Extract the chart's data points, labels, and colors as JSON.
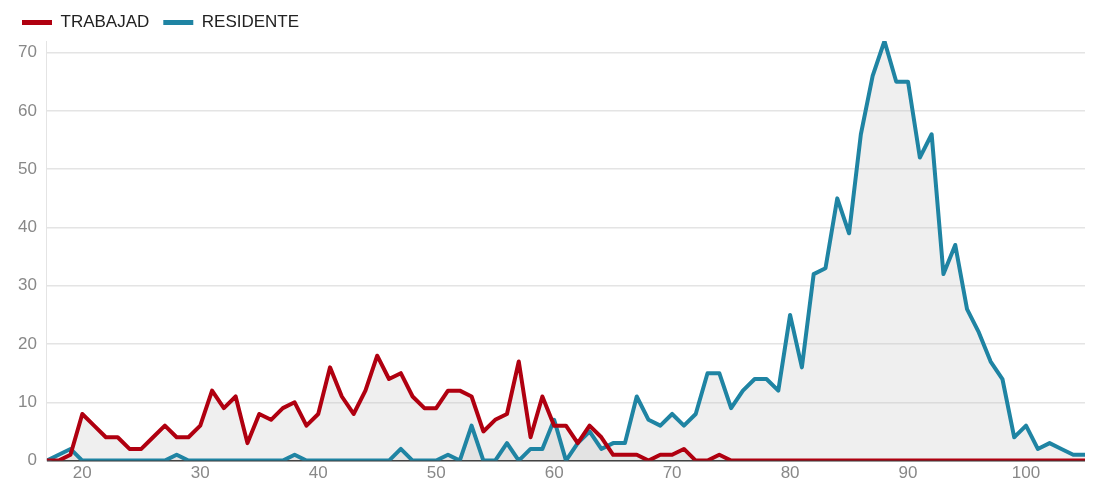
{
  "chart_data": {
    "type": "area",
    "x": [
      17,
      18,
      19,
      20,
      21,
      22,
      23,
      24,
      25,
      26,
      27,
      28,
      29,
      30,
      31,
      32,
      33,
      34,
      35,
      36,
      37,
      38,
      39,
      40,
      41,
      42,
      43,
      44,
      45,
      46,
      47,
      48,
      49,
      50,
      51,
      52,
      53,
      54,
      55,
      56,
      57,
      58,
      59,
      60,
      61,
      62,
      63,
      64,
      65,
      66,
      67,
      68,
      69,
      70,
      71,
      72,
      73,
      74,
      75,
      76,
      77,
      78,
      79,
      80,
      81,
      82,
      83,
      84,
      85,
      86,
      87,
      88,
      89,
      90,
      91,
      92,
      93,
      94,
      95,
      96,
      97,
      98,
      99,
      100,
      101,
      102,
      103,
      104,
      105
    ],
    "series": [
      {
        "name": "TRABAJAD",
        "color": "#b00010",
        "values": [
          0,
          0,
          1,
          8,
          6,
          4,
          4,
          2,
          2,
          4,
          6,
          4,
          4,
          6,
          12,
          9,
          11,
          3,
          8,
          7,
          9,
          10,
          6,
          8,
          16,
          11,
          8,
          12,
          18,
          14,
          15,
          11,
          9,
          9,
          12,
          12,
          11,
          5,
          7,
          8,
          17,
          4,
          11,
          6,
          6,
          3,
          6,
          4,
          1,
          1,
          1,
          0,
          1,
          1,
          2,
          0,
          0,
          1,
          0,
          0,
          0,
          0,
          0,
          0,
          0,
          0,
          0,
          0,
          0,
          0,
          0,
          0,
          0,
          0,
          0,
          0,
          0,
          0,
          0,
          0,
          0,
          0,
          0,
          0,
          0,
          0,
          0,
          0,
          0
        ]
      },
      {
        "name": "RESIDENTE",
        "color": "#1f84a3",
        "values": [
          0,
          1,
          2,
          0,
          0,
          0,
          0,
          0,
          0,
          0,
          0,
          1,
          0,
          0,
          0,
          0,
          0,
          0,
          0,
          0,
          0,
          1,
          0,
          0,
          0,
          0,
          0,
          0,
          0,
          0,
          2,
          0,
          0,
          0,
          1,
          0,
          6,
          0,
          0,
          3,
          0,
          2,
          2,
          7,
          0,
          3,
          5,
          2,
          3,
          3,
          11,
          7,
          6,
          8,
          6,
          8,
          15,
          15,
          9,
          12,
          14,
          14,
          12,
          25,
          16,
          32,
          33,
          45,
          39,
          56,
          66,
          72,
          65,
          65,
          52,
          56,
          32,
          37,
          26,
          22,
          17,
          14,
          4,
          6,
          2,
          3,
          2,
          1,
          1
        ]
      }
    ],
    "xlim": [
      17,
      105
    ],
    "xticks": [
      20,
      30,
      40,
      50,
      60,
      70,
      80,
      90,
      100
    ],
    "ylim": [
      0,
      72
    ],
    "yticks": [
      0,
      10,
      20,
      30,
      40,
      50,
      60,
      70
    ],
    "grid": "y",
    "legend": "top left",
    "marker": "none",
    "line_style": "solid"
  }
}
